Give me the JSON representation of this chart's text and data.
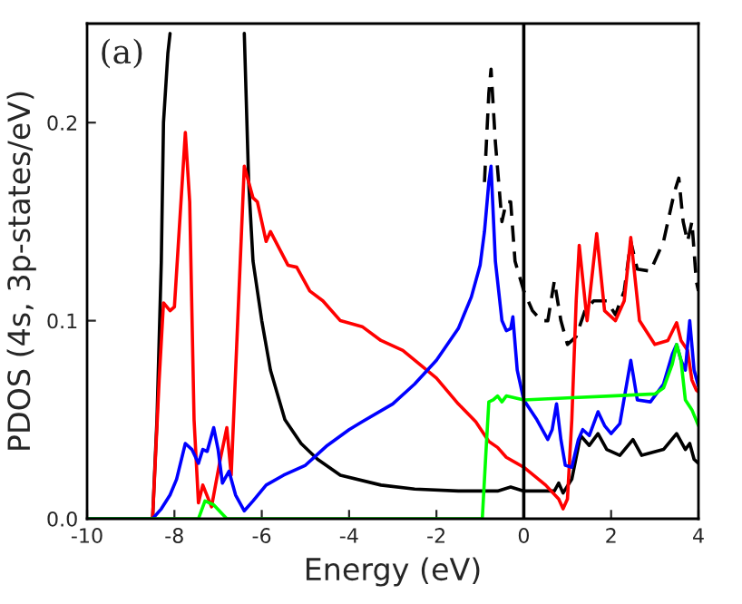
{
  "chart_data": {
    "type": "line",
    "xlabel": "Energy (eV)",
    "ylabel": "PDOS (4s, 3p-states/eV)",
    "annotations": [
      "(a)"
    ],
    "xlim": [
      -10,
      4
    ],
    "ylim": [
      0,
      0.25
    ],
    "xticks": [
      -10,
      -8,
      -6,
      -4,
      -2,
      0,
      2,
      4
    ],
    "yticks": [
      {
        "value": 0,
        "label": "0.0"
      },
      {
        "value": 0.1,
        "label": "0.1"
      },
      {
        "value": 0.2,
        "label": "0.2"
      }
    ],
    "grid": false,
    "legend": false,
    "marker": "none",
    "ref_lines": [
      {
        "axis": "x",
        "value": 0,
        "color": "#000000",
        "line_style": "solid"
      }
    ],
    "series": [
      {
        "color": "#000000",
        "line_style": "solid",
        "x": [
          -10,
          -8.5,
          -8.4,
          -8.3,
          -8.25,
          -8.15,
          -8.1,
          -7.3,
          -6.4,
          -6.3,
          -6.2,
          -6.0,
          -5.8,
          -5.47,
          -5.1,
          -4.72,
          -4.2,
          -3.27,
          -2.5,
          -1.5,
          -0.6,
          -0.3,
          0,
          0.7,
          0.8,
          0.9,
          1.1,
          1.3,
          1.5,
          1.7,
          1.9,
          2.2,
          2.5,
          2.7,
          3.2,
          3.5,
          3.7,
          3.8,
          3.9,
          4.0
        ],
        "values": [
          0,
          0,
          0.05,
          0.13,
          0.2,
          0.235,
          0.245,
          null,
          0.245,
          0.17,
          0.13,
          0.1,
          0.075,
          0.05,
          0.038,
          0.03,
          0.022,
          0.017,
          0.015,
          0.014,
          0.014,
          0.016,
          0.014,
          0.014,
          0.018,
          0.013,
          0.02,
          0.042,
          0.037,
          0.043,
          0.035,
          0.032,
          0.04,
          0.032,
          0.035,
          0.043,
          0.035,
          0.038,
          0.03,
          0.028
        ]
      },
      {
        "color": "#000000",
        "line_style": "dashed",
        "x": [
          -0.9,
          -0.8,
          -0.75,
          -0.65,
          -0.5,
          -0.4,
          -0.3,
          -0.2,
          0,
          0.2,
          0.4,
          0.55,
          0.7,
          0.85,
          1.0,
          1.2,
          1.4,
          1.6,
          1.9,
          2.1,
          2.3,
          2.45,
          2.6,
          2.9,
          3.2,
          3.45,
          3.55,
          3.65,
          3.75,
          3.85,
          3.95,
          4.0
        ],
        "values": [
          0.17,
          0.215,
          0.227,
          0.19,
          0.15,
          0.16,
          0.16,
          0.13,
          0.115,
          0.105,
          0.1,
          0.1,
          0.12,
          0.1,
          0.088,
          0.092,
          0.105,
          0.11,
          0.11,
          0.103,
          0.115,
          0.14,
          0.126,
          0.125,
          0.14,
          0.165,
          0.172,
          0.15,
          0.14,
          0.15,
          0.12,
          0.115
        ]
      },
      {
        "color": "#ff0000",
        "line_style": "solid",
        "x": [
          -10,
          -8.5,
          -8.35,
          -8.25,
          -8.1,
          -8.0,
          -7.85,
          -7.75,
          -7.65,
          -7.55,
          -7.45,
          -7.35,
          -7.15,
          -6.95,
          -6.8,
          -6.7,
          -6.55,
          -6.4,
          -6.2,
          -6.1,
          -5.9,
          -5.8,
          -5.4,
          -5.2,
          -4.9,
          -4.6,
          -4.2,
          -3.7,
          -3.27,
          -2.77,
          -2.0,
          -1.5,
          -1.1,
          -0.8,
          -0.6,
          -0.4,
          0,
          0.5,
          0.8,
          0.9,
          1.0,
          1.1,
          1.2,
          1.27,
          1.45,
          1.67,
          1.85,
          2.1,
          2.3,
          2.45,
          2.65,
          3.0,
          3.3,
          3.5,
          3.6,
          3.75,
          3.85,
          3.95,
          4.0
        ],
        "values": [
          0,
          0,
          0.07,
          0.109,
          0.105,
          0.107,
          0.16,
          0.195,
          0.16,
          0.05,
          0.008,
          0.017,
          0.006,
          0.03,
          0.046,
          0.022,
          0.1,
          0.178,
          0.162,
          0.16,
          0.14,
          0.145,
          0.128,
          0.127,
          0.115,
          0.11,
          0.1,
          0.097,
          0.09,
          0.085,
          0.071,
          0.058,
          0.049,
          0.039,
          0.036,
          0.031,
          0.026,
          0.017,
          0.01,
          0.005,
          0.01,
          0.05,
          0.11,
          0.138,
          0.1,
          0.144,
          0.105,
          0.1,
          0.11,
          0.142,
          0.1,
          0.088,
          0.09,
          0.099,
          0.09,
          0.085,
          0.07,
          0.065,
          0.064
        ]
      },
      {
        "color": "#0000ff",
        "line_style": "solid",
        "x": [
          -10,
          -8.5,
          -8.3,
          -8.1,
          -7.95,
          -7.75,
          -7.6,
          -7.45,
          -7.35,
          -7.25,
          -7.1,
          -7.0,
          -6.9,
          -6.75,
          -6.6,
          -6.4,
          -6.2,
          -5.9,
          -5.5,
          -5.0,
          -4.5,
          -4.0,
          -3.7,
          -3.0,
          -2.5,
          -2.0,
          -1.5,
          -1.2,
          -1.0,
          -0.9,
          -0.8,
          -0.75,
          -0.65,
          -0.5,
          -0.4,
          -0.3,
          -0.25,
          -0.15,
          -0.05,
          0,
          0.3,
          0.55,
          0.65,
          0.75,
          0.85,
          0.95,
          1.1,
          1.25,
          1.35,
          1.5,
          1.7,
          1.85,
          2.0,
          2.2,
          2.45,
          2.6,
          2.9,
          3.2,
          3.4,
          3.5,
          3.6,
          3.7,
          3.8,
          3.9,
          4.0
        ],
        "values": [
          0,
          0,
          0.005,
          0.012,
          0.02,
          0.038,
          0.035,
          0.028,
          0.035,
          0.034,
          0.046,
          0.035,
          0.018,
          0.024,
          0.012,
          0.004,
          0.009,
          0.017,
          0.022,
          0.027,
          0.037,
          0.045,
          0.049,
          0.058,
          0.068,
          0.08,
          0.096,
          0.112,
          0.128,
          0.145,
          0.17,
          0.178,
          0.13,
          0.1,
          0.095,
          0.096,
          0.102,
          0.075,
          0.065,
          0.06,
          0.05,
          0.04,
          0.045,
          0.058,
          0.04,
          0.027,
          0.026,
          0.04,
          0.045,
          0.042,
          0.054,
          0.047,
          0.043,
          0.048,
          0.08,
          0.06,
          0.059,
          0.068,
          0.083,
          0.088,
          0.08,
          0.075,
          0.1,
          0.075,
          0.067
        ]
      },
      {
        "color": "#00ff00",
        "line_style": "solid",
        "x": [
          -10,
          -7.45,
          -7.3,
          -7.1,
          -6.8,
          -0.95,
          -0.85,
          -0.8,
          -0.7,
          -0.6,
          -0.5,
          -0.4,
          0,
          1,
          2,
          3,
          3.2,
          3.4,
          3.5,
          3.6,
          3.7,
          3.85,
          4.0
        ],
        "values": [
          0,
          0,
          0.009,
          0.007,
          0,
          0,
          0.04,
          0.059,
          0.06,
          0.062,
          0.059,
          0.062,
          0.06,
          0.061,
          0.062,
          0.063,
          0.066,
          0.078,
          0.088,
          0.08,
          0.06,
          0.055,
          0.047
        ]
      }
    ]
  }
}
